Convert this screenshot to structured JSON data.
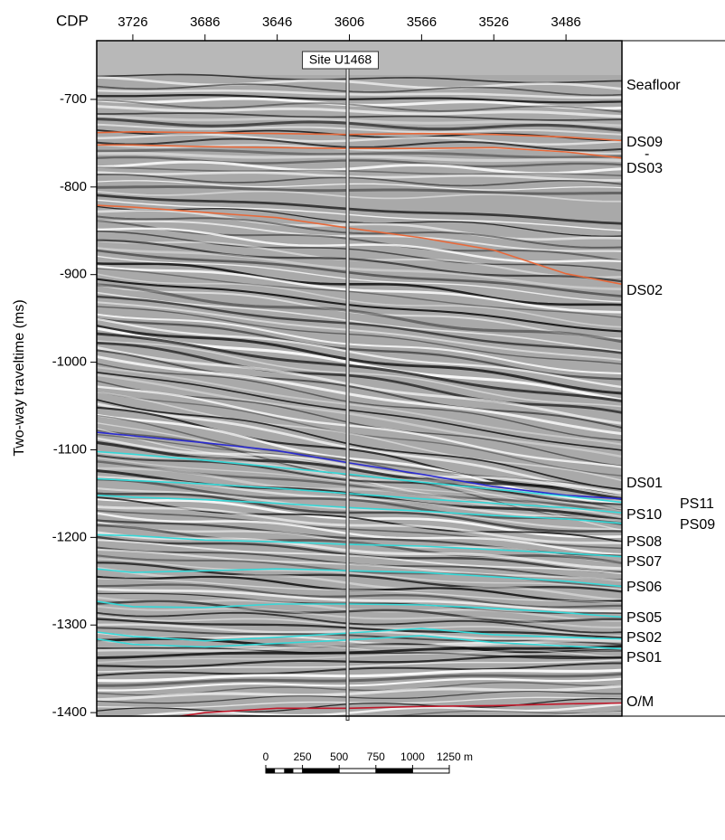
{
  "chart_data": {
    "type": "seismic",
    "x_axis_title": "CDP",
    "y_axis_title": "Two-way traveltime (ms)",
    "xlim": [
      3746,
      3455
    ],
    "xticks": [
      3726,
      3686,
      3646,
      3606,
      3566,
      3526,
      3486
    ],
    "ylim": [
      -633,
      -1404
    ],
    "yticks": [
      -700,
      -800,
      -900,
      -1000,
      -1100,
      -1200,
      -1300,
      -1400
    ],
    "x": [
      3746,
      3726,
      3686,
      3646,
      3606,
      3566,
      3526,
      3486,
      3455
    ],
    "series": [
      {
        "color": "#e8693a",
        "values": [
          -738,
          -737,
          -738,
          -739,
          -740,
          -739,
          -740,
          -743,
          -747
        ]
      },
      {
        "color": "#e8693a",
        "values": [
          -752,
          -752,
          -754,
          -755,
          -756,
          -756,
          -755,
          -760,
          -767
        ]
      },
      {
        "color": "#e8693a",
        "values": [
          -821,
          -823,
          -829,
          -835,
          -847,
          -858,
          -872,
          -899,
          -911
        ]
      },
      {
        "color": "#2a2ad0",
        "values": [
          -1080,
          -1084,
          -1092,
          -1101,
          -1115,
          -1128,
          -1142,
          -1152,
          -1156
        ]
      },
      {
        "color": "#35d8d8",
        "values": [
          -1102,
          -1105,
          -1112,
          -1120,
          -1128,
          -1137,
          -1145,
          -1153,
          -1160
        ]
      },
      {
        "color": "#35d8d8",
        "values": [
          -1133,
          -1135,
          -1139,
          -1144,
          -1150,
          -1156,
          -1161,
          -1166,
          -1172
        ]
      },
      {
        "color": "#35d8d8",
        "values": [
          -1152,
          -1154,
          -1157,
          -1161,
          -1166,
          -1170,
          -1175,
          -1179,
          -1184
        ]
      },
      {
        "color": "#35d8d8",
        "values": [
          -1197,
          -1198,
          -1203,
          -1205,
          -1208,
          -1210,
          -1214,
          -1218,
          -1222
        ]
      },
      {
        "color": "#35d8d8",
        "values": [
          -1236,
          -1240,
          -1238,
          -1236,
          -1238,
          -1240,
          -1245,
          -1250,
          -1256
        ]
      },
      {
        "color": "#35d8d8",
        "values": [
          -1273,
          -1279,
          -1280,
          -1276,
          -1276,
          -1277,
          -1281,
          -1286,
          -1291
        ]
      },
      {
        "color": "#35d8d8",
        "values": [
          -1308,
          -1313,
          -1318,
          -1314,
          -1309,
          -1304,
          -1311,
          -1314,
          -1316
        ]
      },
      {
        "color": "#35d8d8",
        "values": [
          -1316,
          -1322,
          -1325,
          -1321,
          -1317,
          -1312,
          -1320,
          -1324,
          -1327
        ]
      },
      {
        "color": "#c0182a",
        "values": [
          -1406,
          -1412,
          -1400,
          -1395,
          -1395,
          -1393,
          -1392,
          -1390,
          -1389
        ]
      }
    ],
    "horizon_labels": [
      "Seafloor",
      "DS09",
      "-",
      "DS03",
      "DS02",
      "DS01",
      "PS11",
      "PS10",
      "PS09",
      "PS08",
      "PS07",
      "PS06",
      "PS05",
      "PS02",
      "PS01",
      "O/M"
    ],
    "site": {
      "label": "Site U1468",
      "cdp": 3607
    },
    "scale_bar": {
      "ticks": [
        0,
        250,
        500,
        750,
        1000,
        {
          "value": 1250,
          "label": "1250 m"
        }
      ]
    }
  }
}
